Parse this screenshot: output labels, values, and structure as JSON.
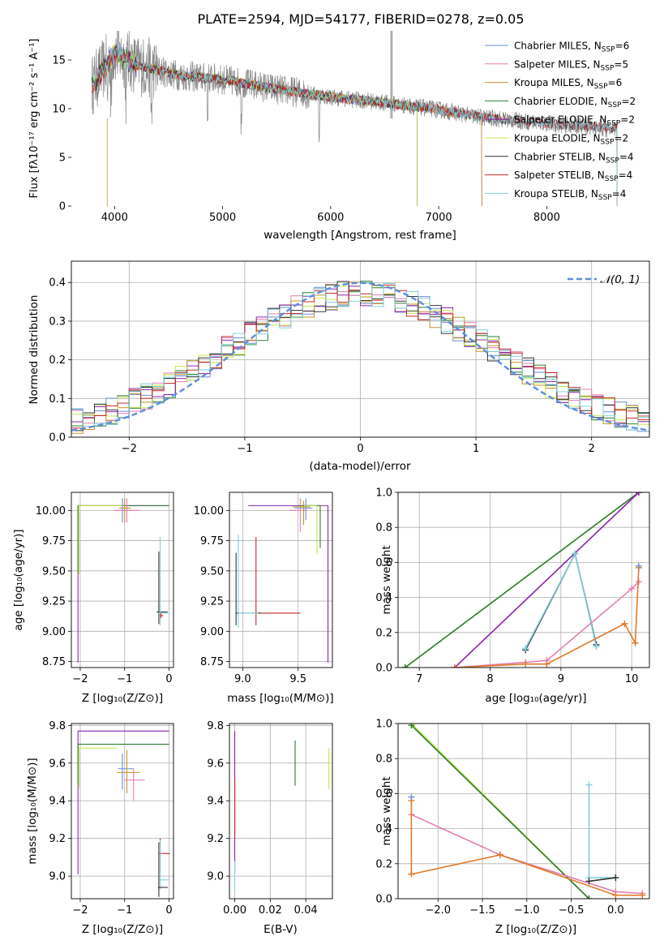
{
  "figure_title": "PLATE=2594, MJD=54177, FIBERID=0278, z=0.05",
  "colors": {
    "Chabrier MILES": "#6a8fd8",
    "Salpeter MILES": "#e37fb0",
    "Kroupa MILES": "#c8922a",
    "Chabrier ELODIE": "#2e7d32",
    "Salpeter ELODIE": "#8e24aa",
    "Kroupa ELODIE": "#c5e84a",
    "Chabrier STELIB": "#333333",
    "Salpeter STELIB": "#c62828",
    "Kroupa STELIB": "#80d0dc",
    "data": "#888888",
    "normal": "#5b8ee0",
    "fit_weight": "#e07a2a"
  },
  "chart_data": [
    {
      "type": "line",
      "title": "PLATE=2594, MJD=54177, FIBERID=0278, z=0.05",
      "xlabel": "wavelength [Angstrom, rest frame]",
      "ylabel": "Flux [fλ10⁻¹⁷ erg cm⁻² s⁻¹ A⁻¹]",
      "xlim": [
        3600,
        8950
      ],
      "ylim": [
        0,
        18
      ],
      "xticks": [
        4000,
        5000,
        6000,
        7000,
        8000
      ],
      "yticks": [
        0,
        5,
        10,
        15
      ],
      "grid": false,
      "legend_position": "top-right",
      "continuum": {
        "x": [
          3800,
          4000,
          4200,
          4600,
          5000,
          5500,
          6000,
          6500,
          7000,
          7400,
          7800,
          8200,
          8650
        ],
        "y": [
          12.5,
          15.8,
          14.5,
          13.4,
          13.0,
          12.0,
          11.2,
          10.6,
          9.9,
          9.1,
          8.7,
          8.3,
          8.0
        ]
      },
      "series": [
        {
          "name": "Chabrier MILES",
          "nssp": "6",
          "end": 7400
        },
        {
          "name": "Salpeter MILES",
          "nssp": "5",
          "end": 7400
        },
        {
          "name": "Kroupa MILES",
          "nssp": "6",
          "end": 7400
        },
        {
          "name": "Chabrier ELODIE",
          "nssp": "2",
          "end": 6800
        },
        {
          "name": "Salpeter ELODIE",
          "nssp": "2",
          "end": 6800
        },
        {
          "name": "Kroupa ELODIE",
          "nssp": "2",
          "end": 6800
        },
        {
          "name": "Chabrier STELIB",
          "nssp": "4",
          "end": 8650
        },
        {
          "name": "Salpeter STELIB",
          "nssp": "4",
          "end": 8650
        },
        {
          "name": "Kroupa STELIB",
          "nssp": "4",
          "end": 8650
        }
      ]
    },
    {
      "type": "histogram",
      "xlabel": "(data-model)/error",
      "ylabel": "Normed distribution",
      "xlim": [
        -2.5,
        2.5
      ],
      "ylim": [
        0,
        0.455
      ],
      "xticks": [
        -2,
        -1,
        0,
        1,
        2
      ],
      "yticks": [
        0.0,
        0.1,
        0.2,
        0.3,
        0.4
      ],
      "grid": true,
      "legend_position": "top-right",
      "legend": "𝒩(0, 1)",
      "bin_width": 0.1
    },
    {
      "type": "errorbar",
      "xlabel": "Z [log₁₀(Z/Z⊙)]",
      "ylabel": "age  [log₁₀(age/yr)]",
      "xlim": [
        -2.2,
        0.1
      ],
      "ylim": [
        8.7,
        10.15
      ],
      "xticks": [
        -2,
        -1,
        0
      ],
      "yticks": [
        8.75,
        9.0,
        9.25,
        9.5,
        9.75,
        10.0
      ],
      "grid": true
    },
    {
      "type": "errorbar",
      "xlabel": "mass [log₁₀(M/M⊙)]",
      "xlim": [
        8.88,
        9.81
      ],
      "ylim": [
        8.7,
        10.15
      ],
      "xticks": [
        9.0,
        9.5
      ],
      "yticks": [
        8.75,
        9.0,
        9.25,
        9.5,
        9.75,
        10.0
      ],
      "grid": true
    },
    {
      "type": "line",
      "xlabel": "age  [log₁₀(age/yr)]",
      "ylabel": "mass weight",
      "xlim": [
        6.7,
        10.25
      ],
      "ylim": [
        0,
        1
      ],
      "xticks": [
        7,
        8,
        9,
        10
      ],
      "yticks": [
        0.0,
        0.2,
        0.4,
        0.6,
        0.8,
        1.0
      ],
      "grid": true,
      "series": [
        {
          "name": "Kroupa ELODIE",
          "x": [
            6.8,
            10.1
          ],
          "y": [
            0.0,
            1.0
          ]
        },
        {
          "name": "Chabrier ELODIE",
          "x": [
            6.8,
            10.1
          ],
          "y": [
            0.0,
            1.0
          ]
        },
        {
          "name": "Salpeter ELODIE",
          "x": [
            7.5,
            10.1
          ],
          "y": [
            0.0,
            1.0
          ]
        },
        {
          "name": "Chabrier STELIB",
          "x": [
            8.5,
            9.2,
            9.5
          ],
          "y": [
            0.1,
            0.65,
            0.13
          ]
        },
        {
          "name": "Kroupa STELIB",
          "x": [
            8.5,
            9.2,
            9.5
          ],
          "y": [
            0.11,
            0.65,
            0.12
          ]
        },
        {
          "name": "Salpeter MILES",
          "x": [
            7.5,
            8.5,
            8.8,
            10.0,
            10.1
          ],
          "y": [
            0.0,
            0.03,
            0.04,
            0.45,
            0.49
          ]
        },
        {
          "name": "Kroupa MILES",
          "x": [
            7.5,
            8.5,
            8.8,
            9.9,
            10.05,
            10.1
          ],
          "y": [
            0.0,
            0.02,
            0.02,
            0.25,
            0.14,
            0.57
          ]
        },
        {
          "name": "Chabrier MILES",
          "x": [
            10.1
          ],
          "y": [
            0.58
          ]
        }
      ]
    },
    {
      "type": "errorbar",
      "xlabel": "Z [log₁₀(Z/Z⊙)]",
      "ylabel": "mass [log₁₀(M/M⊙)]",
      "xlim": [
        -2.2,
        0.1
      ],
      "ylim": [
        8.88,
        9.81
      ],
      "xticks": [
        -2,
        -1,
        0
      ],
      "yticks": [
        9.0,
        9.2,
        9.4,
        9.6,
        9.8
      ],
      "grid": true
    },
    {
      "type": "errorbar",
      "xlabel": "E(B-V)",
      "xlim": [
        -0.003,
        0.055
      ],
      "ylim": [
        8.88,
        9.81
      ],
      "xticks": [
        0.0,
        0.02,
        0.04
      ],
      "yticks": [
        9.0,
        9.2,
        9.4,
        9.6,
        9.8
      ],
      "grid": true
    },
    {
      "type": "line",
      "xlabel": "Z [log₁₀(Z/Z⊙)]",
      "ylabel": "mass weight",
      "xlim": [
        -2.45,
        0.38
      ],
      "ylim": [
        0,
        1
      ],
      "xticks": [
        -2.0,
        -1.5,
        -1.0,
        -0.5,
        0.0
      ],
      "yticks": [
        0.0,
        0.2,
        0.4,
        0.6,
        0.8,
        1.0
      ],
      "grid": true,
      "series": [
        {
          "name": "Kroupa ELODIE",
          "x": [
            -2.3,
            -0.3
          ],
          "y": [
            1.0,
            0.0
          ]
        },
        {
          "name": "Chabrier ELODIE",
          "x": [
            -2.3,
            -0.3
          ],
          "y": [
            0.99,
            0.0
          ]
        },
        {
          "name": "Salpeter MILES",
          "x": [
            -2.3,
            -1.3,
            0.0,
            0.3
          ],
          "y": [
            0.48,
            0.25,
            0.04,
            0.03
          ]
        },
        {
          "name": "Kroupa MILES",
          "x": [
            -2.3,
            -2.3,
            -1.3,
            0.0,
            0.3
          ],
          "y": [
            0.56,
            0.14,
            0.25,
            0.02,
            0.02
          ]
        },
        {
          "name": "Kroupa STELIB",
          "x": [
            -0.3,
            -0.3,
            0.0
          ],
          "y": [
            0.65,
            0.12,
            0.12
          ]
        },
        {
          "name": "Chabrier STELIB",
          "x": [
            -0.3,
            0.0
          ],
          "y": [
            0.1,
            0.12
          ]
        },
        {
          "name": "Chabrier MILES",
          "x": [
            -2.3
          ],
          "y": [
            0.58
          ]
        }
      ]
    }
  ]
}
